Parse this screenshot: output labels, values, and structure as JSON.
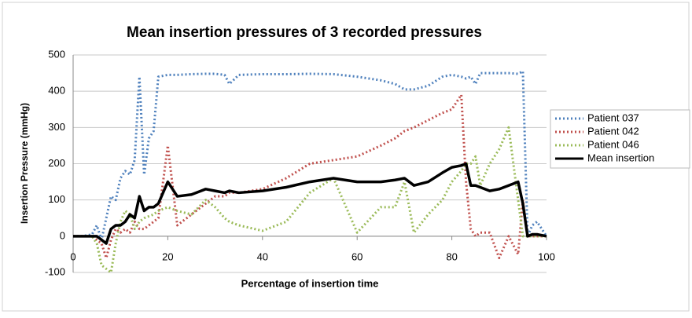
{
  "chart_data": {
    "type": "line",
    "title": "Mean insertion pressures of 3 recorded pressures",
    "x_label": "Percentage of insertion time",
    "y_label": "Insertion  Pressure (mmHg)",
    "x": [
      0,
      2,
      4,
      5,
      6,
      7,
      8,
      9,
      10,
      11,
      12,
      13,
      14,
      15,
      16,
      17,
      18,
      20,
      22,
      25,
      28,
      30,
      32,
      33,
      35,
      40,
      45,
      50,
      55,
      60,
      65,
      68,
      70,
      72,
      75,
      78,
      80,
      82,
      83,
      84,
      85,
      86,
      88,
      90,
      92,
      94,
      95,
      96,
      97,
      98,
      100
    ],
    "series": [
      {
        "name": "Patient 037",
        "color": "#4f81bd",
        "line_style": "dotted",
        "values": [
          0,
          0,
          5,
          30,
          -10,
          50,
          110,
          100,
          160,
          180,
          170,
          210,
          440,
          170,
          270,
          290,
          440,
          445,
          445,
          447,
          448,
          448,
          445,
          420,
          445,
          447,
          447,
          448,
          447,
          440,
          430,
          420,
          405,
          405,
          415,
          440,
          445,
          440,
          435,
          440,
          420,
          450,
          450,
          450,
          450,
          448,
          455,
          0,
          30,
          40,
          0
        ]
      },
      {
        "name": "Patient 042",
        "color": "#c0504d",
        "line_style": "dotted",
        "values": [
          0,
          0,
          0,
          -10,
          -20,
          -60,
          -10,
          20,
          10,
          20,
          10,
          40,
          20,
          20,
          30,
          40,
          50,
          250,
          30,
          60,
          90,
          110,
          110,
          120,
          120,
          130,
          160,
          200,
          210,
          220,
          250,
          270,
          290,
          300,
          320,
          340,
          350,
          390,
          150,
          20,
          0,
          10,
          10,
          -60,
          0,
          -50,
          100,
          0,
          0,
          0,
          0
        ]
      },
      {
        "name": "Patient 046",
        "color": "#9bbb59",
        "line_style": "dotted",
        "values": [
          0,
          0,
          0,
          -20,
          -80,
          -90,
          -100,
          -20,
          40,
          70,
          60,
          20,
          40,
          50,
          55,
          60,
          70,
          80,
          70,
          60,
          100,
          80,
          50,
          40,
          30,
          15,
          40,
          120,
          160,
          10,
          80,
          80,
          150,
          10,
          60,
          100,
          150,
          180,
          200,
          200,
          220,
          140,
          200,
          240,
          300,
          100,
          0,
          0,
          0,
          0,
          0
        ]
      },
      {
        "name": "Mean insertion",
        "color": "#000000",
        "line_style": "solid",
        "values": [
          0,
          0,
          0,
          0,
          -10,
          -20,
          20,
          30,
          30,
          40,
          60,
          50,
          110,
          70,
          80,
          80,
          90,
          150,
          110,
          115,
          130,
          125,
          120,
          125,
          120,
          125,
          135,
          150,
          160,
          150,
          150,
          155,
          160,
          140,
          150,
          175,
          190,
          195,
          200,
          140,
          140,
          135,
          125,
          130,
          140,
          150,
          90,
          0,
          5,
          5,
          0
        ]
      }
    ],
    "xlim": [
      0,
      100
    ],
    "xticks": [
      0,
      20,
      40,
      60,
      80,
      100
    ],
    "ylim": [
      -100,
      500
    ],
    "yticks": [
      -100,
      0,
      100,
      200,
      300,
      400,
      500
    ],
    "grid": true,
    "legend": "right"
  }
}
